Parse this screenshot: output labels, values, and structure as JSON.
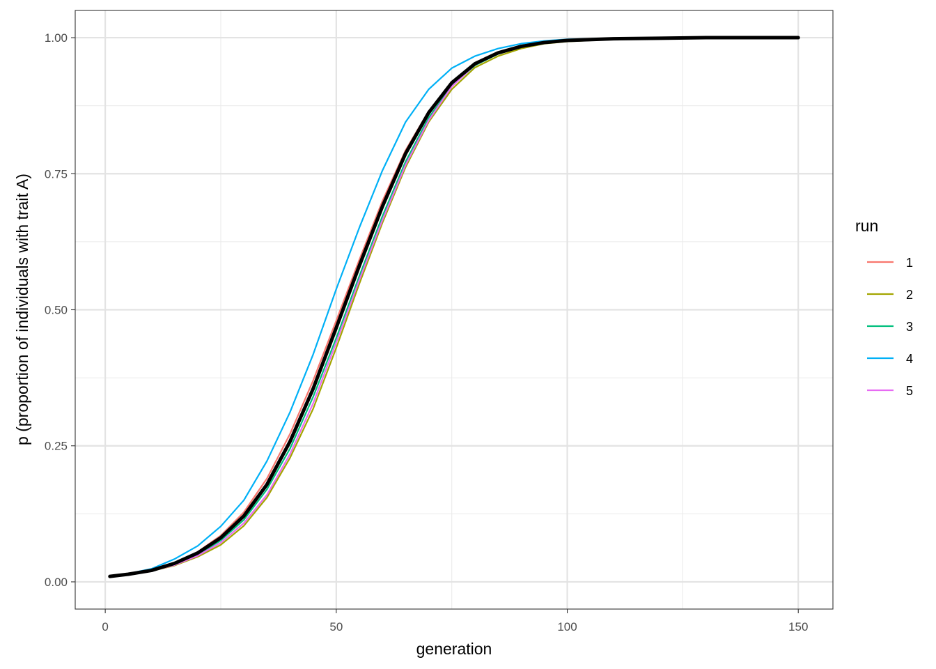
{
  "chart_data": {
    "type": "line",
    "xlabel": "generation",
    "ylabel": "p (proportion of individuals with trait A)",
    "xlim": [
      -6.5,
      157.5
    ],
    "ylim": [
      -0.05,
      1.05
    ],
    "x_ticks": [
      0,
      50,
      100,
      150
    ],
    "x_tick_labels": [
      "0",
      "50",
      "100",
      "150"
    ],
    "x_minor_ticks": [
      25,
      75,
      125
    ],
    "y_ticks": [
      0,
      0.25,
      0.5,
      0.75,
      1
    ],
    "y_tick_labels": [
      "0.00",
      "0.25",
      "0.50",
      "0.75",
      "1.00"
    ],
    "y_minor_ticks": [
      0.125,
      0.375,
      0.625,
      0.875
    ],
    "grid": true,
    "legend": {
      "title": "run",
      "position": "right",
      "entries": [
        "1",
        "2",
        "3",
        "4",
        "5"
      ]
    },
    "x": [
      1,
      5,
      10,
      15,
      20,
      25,
      30,
      35,
      40,
      45,
      50,
      55,
      60,
      65,
      70,
      75,
      80,
      85,
      90,
      95,
      100,
      110,
      120,
      130,
      140,
      150
    ],
    "series": [
      {
        "name": "1",
        "color": "#F8766D",
        "values": [
          0.01,
          0.014,
          0.022,
          0.035,
          0.055,
          0.085,
          0.128,
          0.19,
          0.272,
          0.37,
          0.48,
          0.592,
          0.7,
          0.793,
          0.865,
          0.918,
          0.952,
          0.972,
          0.984,
          0.991,
          0.995,
          0.998,
          0.999,
          1.0,
          1.0,
          1.0
        ]
      },
      {
        "name": "2",
        "color": "#A3A500",
        "values": [
          0.01,
          0.013,
          0.02,
          0.03,
          0.046,
          0.068,
          0.103,
          0.155,
          0.228,
          0.318,
          0.43,
          0.548,
          0.66,
          0.762,
          0.845,
          0.905,
          0.945,
          0.966,
          0.98,
          0.989,
          0.993,
          0.997,
          0.999,
          1.0,
          1.0,
          1.0
        ]
      },
      {
        "name": "3",
        "color": "#00BF7D",
        "values": [
          0.01,
          0.014,
          0.021,
          0.032,
          0.05,
          0.076,
          0.114,
          0.17,
          0.245,
          0.34,
          0.448,
          0.562,
          0.672,
          0.772,
          0.853,
          0.911,
          0.949,
          0.97,
          0.983,
          0.99,
          0.994,
          0.998,
          0.999,
          1.0,
          1.0,
          1.0
        ]
      },
      {
        "name": "4",
        "color": "#00B0F6",
        "values": [
          0.01,
          0.015,
          0.024,
          0.042,
          0.066,
          0.102,
          0.15,
          0.222,
          0.312,
          0.418,
          0.538,
          0.651,
          0.756,
          0.845,
          0.905,
          0.944,
          0.966,
          0.98,
          0.989,
          0.994,
          0.997,
          0.999,
          1.0,
          1.0,
          1.0,
          1.0
        ]
      },
      {
        "name": "5",
        "color": "#E76BF3",
        "values": [
          0.01,
          0.013,
          0.02,
          0.031,
          0.048,
          0.072,
          0.108,
          0.16,
          0.235,
          0.328,
          0.44,
          0.555,
          0.665,
          0.766,
          0.848,
          0.91,
          0.95,
          0.971,
          0.984,
          0.991,
          0.995,
          0.998,
          0.999,
          1.0,
          1.0,
          1.0
        ]
      },
      {
        "color": "#000000",
        "values": [
          0.01,
          0.014,
          0.021,
          0.034,
          0.053,
          0.081,
          0.121,
          0.179,
          0.258,
          0.355,
          0.467,
          0.581,
          0.69,
          0.787,
          0.862,
          0.917,
          0.952,
          0.972,
          0.984,
          0.991,
          0.995,
          0.998,
          0.999,
          1.0,
          1.0,
          1.0
        ]
      }
    ]
  }
}
